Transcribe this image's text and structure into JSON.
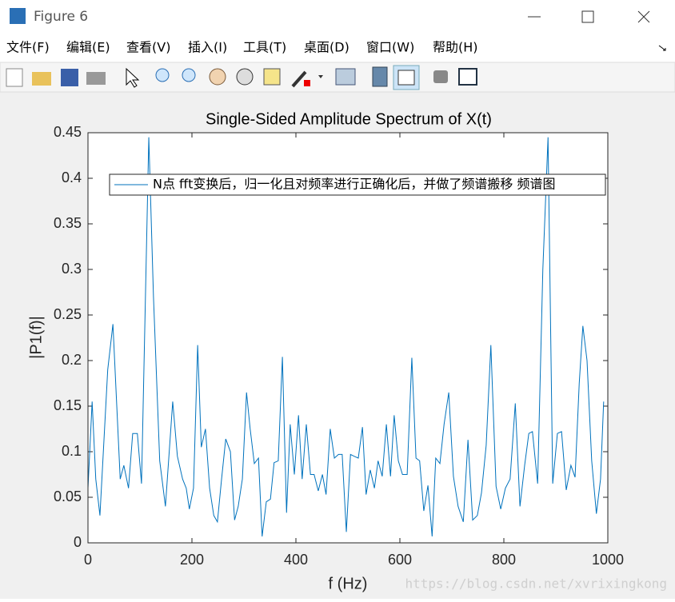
{
  "window": {
    "title": "Figure 6",
    "menu": [
      "文件(F)",
      "编辑(E)",
      "查看(V)",
      "插入(I)",
      "工具(T)",
      "桌面(D)",
      "窗口(W)",
      "帮助(H)"
    ],
    "watermark": "https://blog.csdn.net/xvrixingkong"
  },
  "chart_data": {
    "type": "line",
    "title": "Single-Sided Amplitude Spectrum of X(t)",
    "x_label": "f (Hz)",
    "y_label": "|P1(f)|",
    "xlim": [
      0,
      1000
    ],
    "ylim": [
      0,
      0.45
    ],
    "xticks": [
      0,
      200,
      400,
      600,
      800,
      1000
    ],
    "yticks": [
      0,
      0.05,
      0.1,
      0.15,
      0.2,
      0.25,
      0.3,
      0.35,
      0.4,
      0.45
    ],
    "grid": false,
    "legend_location": "northeast",
    "x": [
      0,
      8,
      15,
      23,
      38,
      48,
      62,
      69,
      78,
      86,
      95,
      103,
      117,
      126,
      138,
      149,
      163,
      172,
      182,
      189,
      195,
      203,
      211,
      218,
      226,
      234,
      242,
      249,
      257,
      265,
      274,
      282,
      289,
      297,
      305,
      312,
      320,
      328,
      335,
      343,
      351,
      358,
      366,
      374,
      382,
      389,
      397,
      405,
      412,
      420,
      428,
      435,
      443,
      451,
      458,
      466,
      474,
      482,
      489,
      497,
      505,
      512,
      520,
      528,
      535,
      543,
      551,
      558,
      566,
      574,
      582,
      589,
      597,
      605,
      614,
      623,
      631,
      638,
      646,
      654,
      662,
      669,
      677,
      685,
      694,
      703,
      712,
      722,
      731,
      740,
      749,
      757,
      766,
      775,
      785,
      794,
      803,
      812,
      822,
      831,
      840,
      848,
      855,
      865,
      875,
      885,
      894,
      903,
      911,
      920,
      929,
      937,
      945,
      952,
      960,
      969,
      978,
      986,
      992
    ],
    "series": [
      {
        "name": "N点 fft变换后，归一化且对频率进行正确化后，并做了频谱搬移 频谱图",
        "color": "#0072bd",
        "values": [
          0.06,
          0.155,
          0.07,
          0.03,
          0.19,
          0.24,
          0.07,
          0.085,
          0.06,
          0.12,
          0.12,
          0.065,
          0.445,
          0.27,
          0.09,
          0.04,
          0.155,
          0.095,
          0.07,
          0.06,
          0.037,
          0.06,
          0.217,
          0.105,
          0.125,
          0.06,
          0.03,
          0.023,
          0.07,
          0.114,
          0.1,
          0.025,
          0.04,
          0.07,
          0.165,
          0.125,
          0.087,
          0.093,
          0.007,
          0.045,
          0.048,
          0.088,
          0.09,
          0.204,
          0.033,
          0.13,
          0.075,
          0.14,
          0.07,
          0.13,
          0.075,
          0.075,
          0.057,
          0.075,
          0.053,
          0.125,
          0.093,
          0.097,
          0.097,
          0.012,
          0.097,
          0.095,
          0.093,
          0.127,
          0.053,
          0.08,
          0.06,
          0.09,
          0.073,
          0.13,
          0.073,
          0.14,
          0.09,
          0.075,
          0.075,
          0.203,
          0.093,
          0.09,
          0.035,
          0.063,
          0.007,
          0.093,
          0.087,
          0.13,
          0.165,
          0.073,
          0.04,
          0.023,
          0.113,
          0.025,
          0.03,
          0.055,
          0.107,
          0.217,
          0.062,
          0.037,
          0.06,
          0.07,
          0.153,
          0.04,
          0.085,
          0.12,
          0.122,
          0.065,
          0.3,
          0.445,
          0.065,
          0.12,
          0.122,
          0.058,
          0.085,
          0.072,
          0.175,
          0.238,
          0.2,
          0.09,
          0.032,
          0.07,
          0.155
        ]
      }
    ]
  }
}
